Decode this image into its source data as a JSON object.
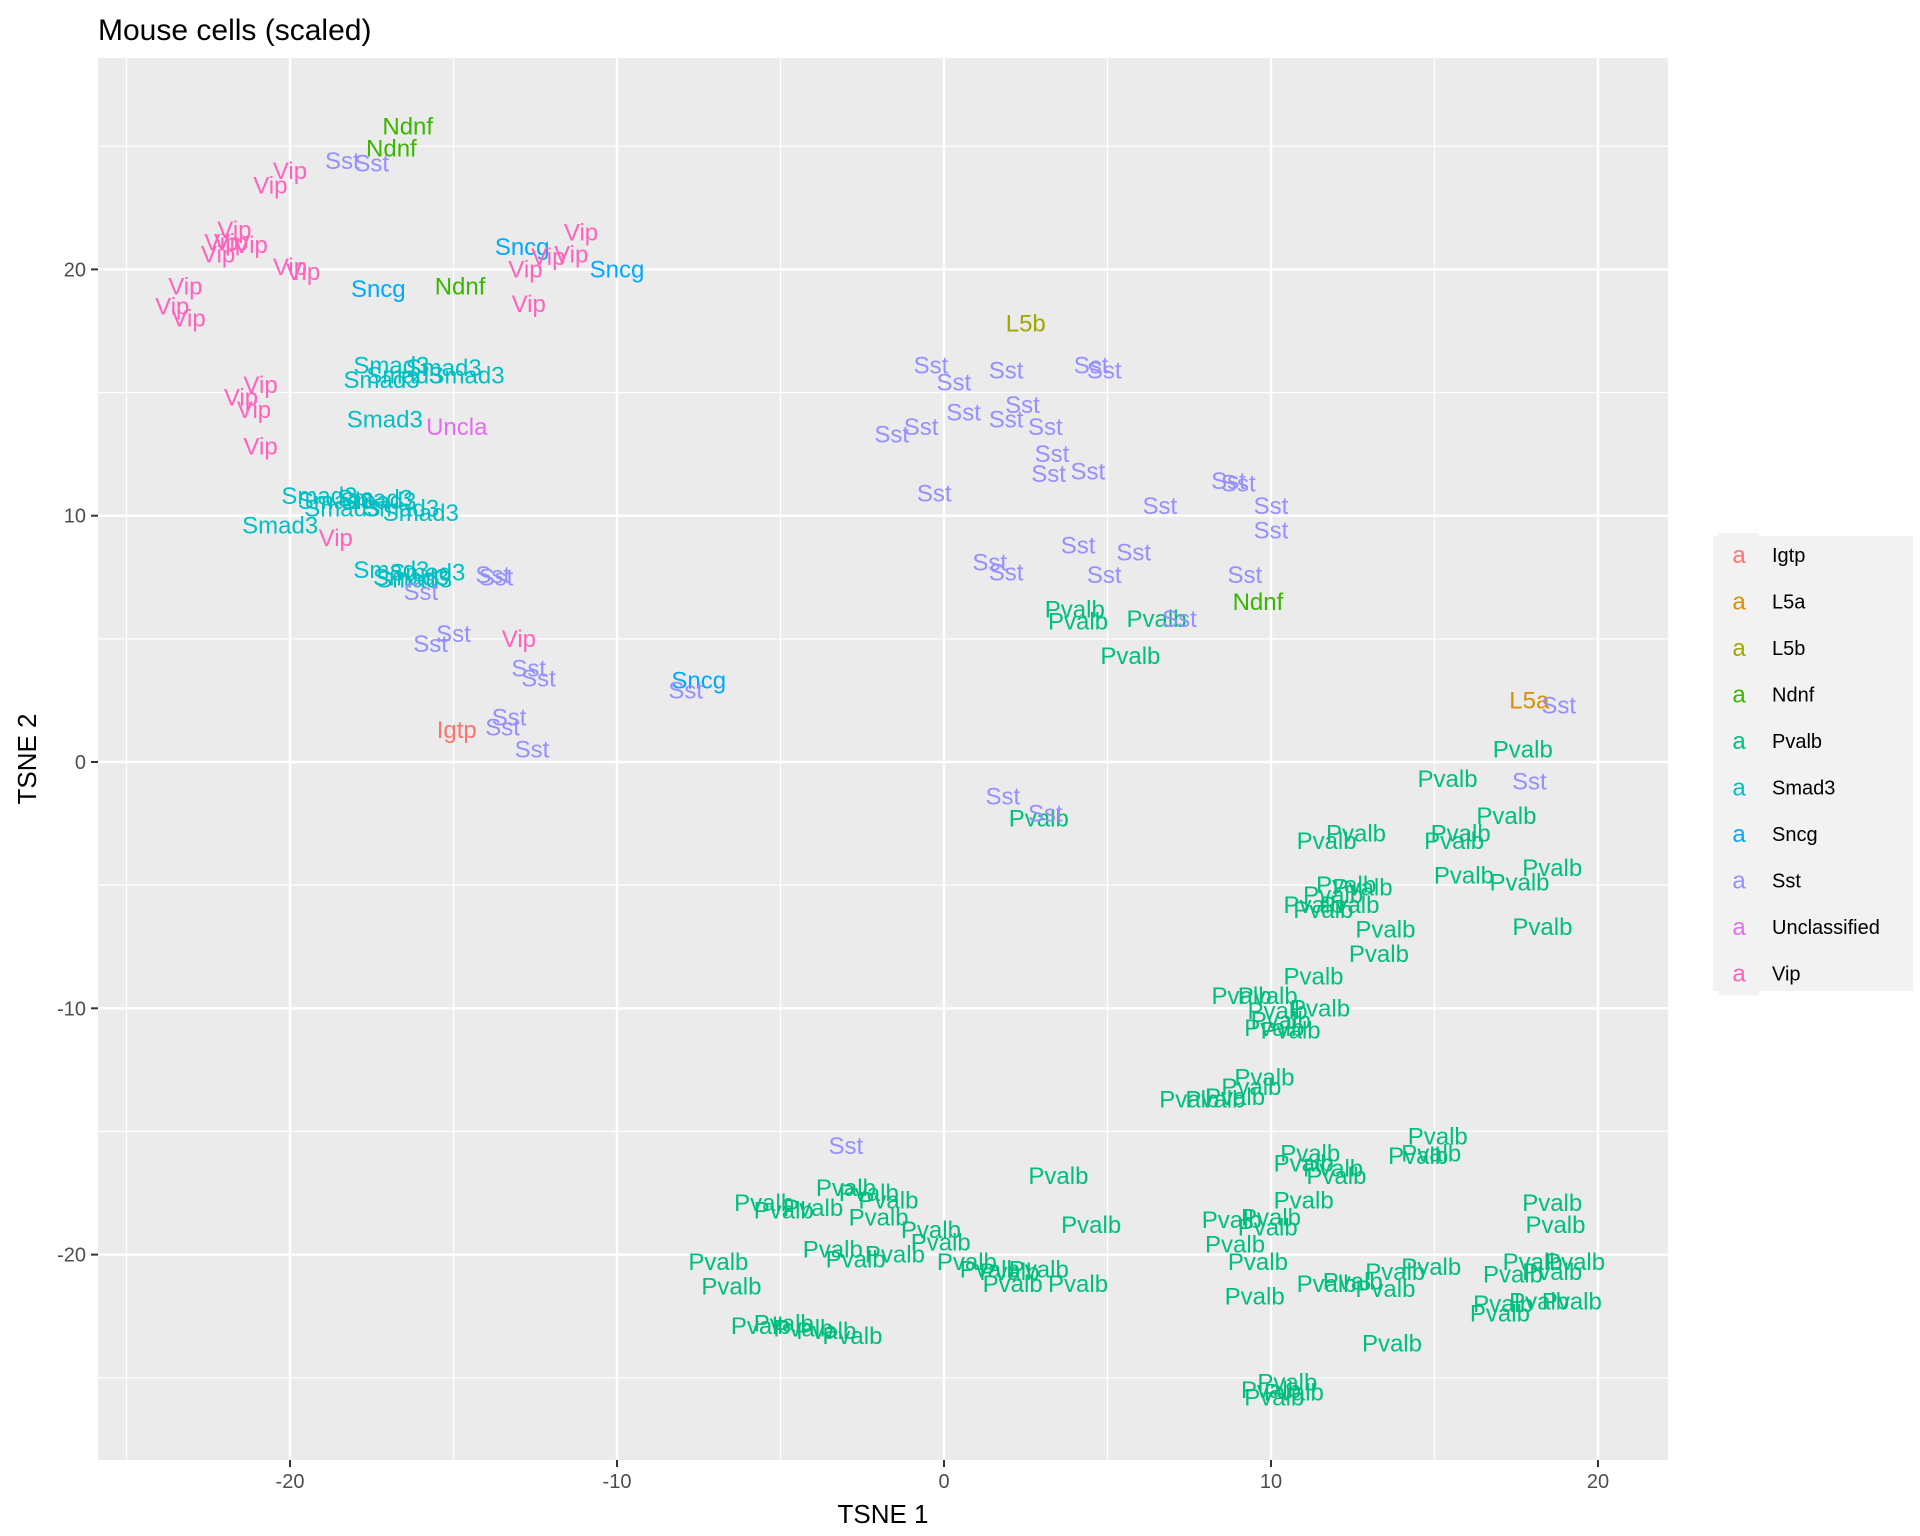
{
  "chart_data": {
    "type": "scatter",
    "title": "Mouse cells (scaled)",
    "xlabel": "TSNE 1",
    "ylabel": "TSNE 2",
    "xlim": [
      -25,
      22
    ],
    "ylim": [
      -28,
      28.5
    ],
    "x_ticks": [
      -20,
      -10,
      0,
      10,
      20
    ],
    "y_ticks": [
      -20,
      -10,
      0,
      10,
      20
    ],
    "grid": true,
    "legend_position": "right",
    "legend_key_glyph": "a",
    "series": [
      {
        "name": "Igtp",
        "color": "#F8766D",
        "points": [
          [
            -14.9,
            1.3
          ]
        ]
      },
      {
        "name": "L5a",
        "color": "#D89000",
        "points": [
          [
            17.9,
            2.5
          ]
        ]
      },
      {
        "name": "L5b",
        "color": "#A3A500",
        "points": [
          [
            2.5,
            17.8
          ]
        ]
      },
      {
        "name": "Ndnf",
        "color": "#39B600",
        "points": [
          [
            -16.4,
            25.8
          ],
          [
            -16.9,
            24.9
          ],
          [
            -14.8,
            19.3
          ],
          [
            9.6,
            6.5
          ]
        ]
      },
      {
        "name": "Pvalb",
        "color": "#00BF7D",
        "points": [
          [
            4.0,
            6.2
          ],
          [
            4.1,
            5.7
          ],
          [
            6.5,
            5.8
          ],
          [
            5.7,
            4.3
          ],
          [
            2.9,
            -2.3
          ],
          [
            17.7,
            0.5
          ],
          [
            15.4,
            -0.7
          ],
          [
            17.2,
            -2.2
          ],
          [
            12.6,
            -2.9
          ],
          [
            15.8,
            -2.9
          ],
          [
            11.7,
            -3.2
          ],
          [
            15.6,
            -3.2
          ],
          [
            18.6,
            -4.3
          ],
          [
            15.9,
            -4.6
          ],
          [
            17.6,
            -4.9
          ],
          [
            12.3,
            -5.0
          ],
          [
            12.8,
            -5.1
          ],
          [
            11.9,
            -5.4
          ],
          [
            11.3,
            -5.8
          ],
          [
            11.6,
            -6.0
          ],
          [
            12.4,
            -5.8
          ],
          [
            18.3,
            -6.7
          ],
          [
            13.5,
            -6.8
          ],
          [
            13.3,
            -7.8
          ],
          [
            11.3,
            -8.7
          ],
          [
            9.1,
            -9.5
          ],
          [
            9.9,
            -9.5
          ],
          [
            10.2,
            -10.1
          ],
          [
            11.5,
            -10.0
          ],
          [
            10.1,
            -10.8
          ],
          [
            10.3,
            -10.5
          ],
          [
            10.6,
            -10.9
          ],
          [
            8.9,
            -13.6
          ],
          [
            9.8,
            -12.8
          ],
          [
            9.4,
            -13.2
          ],
          [
            8.3,
            -13.7
          ],
          [
            7.5,
            -13.7
          ],
          [
            11.2,
            -15.9
          ],
          [
            11.0,
            -16.3
          ],
          [
            11.9,
            -16.5
          ],
          [
            12.0,
            -16.8
          ],
          [
            15.1,
            -15.2
          ],
          [
            14.9,
            -15.9
          ],
          [
            14.5,
            -16.0
          ],
          [
            3.5,
            -16.8
          ],
          [
            -1.7,
            -17.8
          ],
          [
            -2.3,
            -17.5
          ],
          [
            -3.0,
            -17.3
          ],
          [
            -4.0,
            -18.1
          ],
          [
            -5.5,
            -17.9
          ],
          [
            -4.9,
            -18.2
          ],
          [
            -2.0,
            -18.5
          ],
          [
            -3.4,
            -19.8
          ],
          [
            -2.7,
            -20.2
          ],
          [
            -0.4,
            -19.0
          ],
          [
            -0.1,
            -19.5
          ],
          [
            -1.5,
            -20.0
          ],
          [
            -6.9,
            -20.3
          ],
          [
            -6.5,
            -21.3
          ],
          [
            0.7,
            -20.3
          ],
          [
            1.4,
            -20.6
          ],
          [
            2.0,
            -20.7
          ],
          [
            2.1,
            -21.2
          ],
          [
            2.9,
            -20.6
          ],
          [
            4.1,
            -21.2
          ],
          [
            4.5,
            -18.8
          ],
          [
            11.0,
            -17.8
          ],
          [
            10.0,
            -18.5
          ],
          [
            9.9,
            -18.9
          ],
          [
            8.8,
            -18.6
          ],
          [
            8.9,
            -19.6
          ],
          [
            9.6,
            -20.3
          ],
          [
            9.5,
            -21.7
          ],
          [
            11.7,
            -21.2
          ],
          [
            12.5,
            -21.1
          ],
          [
            13.5,
            -21.4
          ],
          [
            13.8,
            -20.7
          ],
          [
            14.9,
            -20.5
          ],
          [
            17.4,
            -20.8
          ],
          [
            18.0,
            -20.3
          ],
          [
            18.6,
            -20.7
          ],
          [
            19.3,
            -20.3
          ],
          [
            17.1,
            -22.0
          ],
          [
            17.0,
            -22.4
          ],
          [
            18.2,
            -21.9
          ],
          [
            19.2,
            -21.9
          ],
          [
            18.7,
            -18.8
          ],
          [
            18.6,
            -17.9
          ],
          [
            -4.9,
            -22.8
          ],
          [
            -3.6,
            -23.1
          ],
          [
            -4.3,
            -23.0
          ],
          [
            -5.6,
            -22.9
          ],
          [
            -2.8,
            -23.3
          ],
          [
            13.7,
            -23.6
          ],
          [
            10.0,
            -25.5
          ],
          [
            10.5,
            -25.2
          ],
          [
            10.1,
            -25.8
          ],
          [
            10.7,
            -25.6
          ]
        ]
      },
      {
        "name": "Smad3",
        "color": "#00BFC4",
        "points": [
          [
            -15.3,
            16.0
          ],
          [
            -16.9,
            16.1
          ],
          [
            -16.5,
            15.7
          ],
          [
            -14.6,
            15.7
          ],
          [
            -17.2,
            15.5
          ],
          [
            -17.1,
            13.9
          ],
          [
            -19.1,
            10.8
          ],
          [
            -18.4,
            10.3
          ],
          [
            -18.6,
            10.6
          ],
          [
            -17.3,
            10.6
          ],
          [
            -16.6,
            10.3
          ],
          [
            -16.0,
            10.1
          ],
          [
            -17.4,
            10.7
          ],
          [
            -20.3,
            9.6
          ],
          [
            -16.9,
            7.8
          ],
          [
            -16.2,
            7.4
          ],
          [
            -16.3,
            7.5
          ],
          [
            -15.8,
            7.7
          ]
        ]
      },
      {
        "name": "Sncg",
        "color": "#00A9FF",
        "points": [
          [
            -12.9,
            20.9
          ],
          [
            -10.0,
            20.0
          ],
          [
            -17.3,
            19.2
          ],
          [
            -7.5,
            3.3
          ]
        ]
      },
      {
        "name": "Sst",
        "color": "#9590FF",
        "points": [
          [
            -18.4,
            24.4
          ],
          [
            -17.5,
            24.3
          ],
          [
            -0.4,
            16.1
          ],
          [
            1.9,
            15.9
          ],
          [
            4.5,
            16.1
          ],
          [
            4.9,
            15.9
          ],
          [
            0.3,
            15.4
          ],
          [
            2.4,
            14.5
          ],
          [
            0.6,
            14.2
          ],
          [
            1.9,
            13.9
          ],
          [
            3.1,
            13.6
          ],
          [
            -0.7,
            13.6
          ],
          [
            -1.6,
            13.3
          ],
          [
            3.3,
            12.5
          ],
          [
            4.4,
            11.8
          ],
          [
            3.2,
            11.7
          ],
          [
            -0.3,
            10.9
          ],
          [
            8.7,
            11.4
          ],
          [
            9.0,
            11.3
          ],
          [
            10.0,
            10.4
          ],
          [
            6.6,
            10.4
          ],
          [
            10.0,
            9.4
          ],
          [
            4.1,
            8.8
          ],
          [
            5.8,
            8.5
          ],
          [
            1.4,
            8.1
          ],
          [
            1.9,
            7.7
          ],
          [
            4.9,
            7.6
          ],
          [
            9.2,
            7.6
          ],
          [
            -13.7,
            7.5
          ],
          [
            -13.8,
            7.6
          ],
          [
            -16.0,
            6.9
          ],
          [
            -15.0,
            5.2
          ],
          [
            -15.7,
            4.8
          ],
          [
            -12.7,
            3.8
          ],
          [
            -12.4,
            3.4
          ],
          [
            -7.9,
            2.9
          ],
          [
            -13.3,
            1.8
          ],
          [
            -13.5,
            1.4
          ],
          [
            -12.6,
            0.5
          ],
          [
            7.2,
            5.8
          ],
          [
            18.8,
            2.3
          ],
          [
            17.9,
            -0.8
          ],
          [
            1.8,
            -1.4
          ],
          [
            3.1,
            -2.1
          ],
          [
            -3.0,
            -15.6
          ]
        ]
      },
      {
        "name": "Unclassified",
        "color": "#E76BF3",
        "points": [
          [
            -14.9,
            13.6
          ]
        ]
      },
      {
        "name": "Vip",
        "color": "#FF62BC",
        "points": [
          [
            -20.0,
            24.0
          ],
          [
            -20.6,
            23.4
          ],
          [
            -21.7,
            21.6
          ],
          [
            -22.1,
            21.1
          ],
          [
            -21.8,
            21.1
          ],
          [
            -21.2,
            21.0
          ],
          [
            -22.2,
            20.6
          ],
          [
            -20.0,
            20.1
          ],
          [
            -19.6,
            19.9
          ],
          [
            -11.1,
            21.5
          ],
          [
            -11.4,
            20.6
          ],
          [
            -12.1,
            20.5
          ],
          [
            -12.8,
            20.0
          ],
          [
            -12.7,
            18.6
          ],
          [
            -23.2,
            19.3
          ],
          [
            -23.6,
            18.5
          ],
          [
            -23.1,
            18.0
          ],
          [
            -20.9,
            15.3
          ],
          [
            -21.5,
            14.8
          ],
          [
            -21.1,
            14.3
          ],
          [
            -20.9,
            12.8
          ],
          [
            -18.6,
            9.1
          ],
          [
            -13.0,
            5.0
          ]
        ]
      }
    ]
  }
}
